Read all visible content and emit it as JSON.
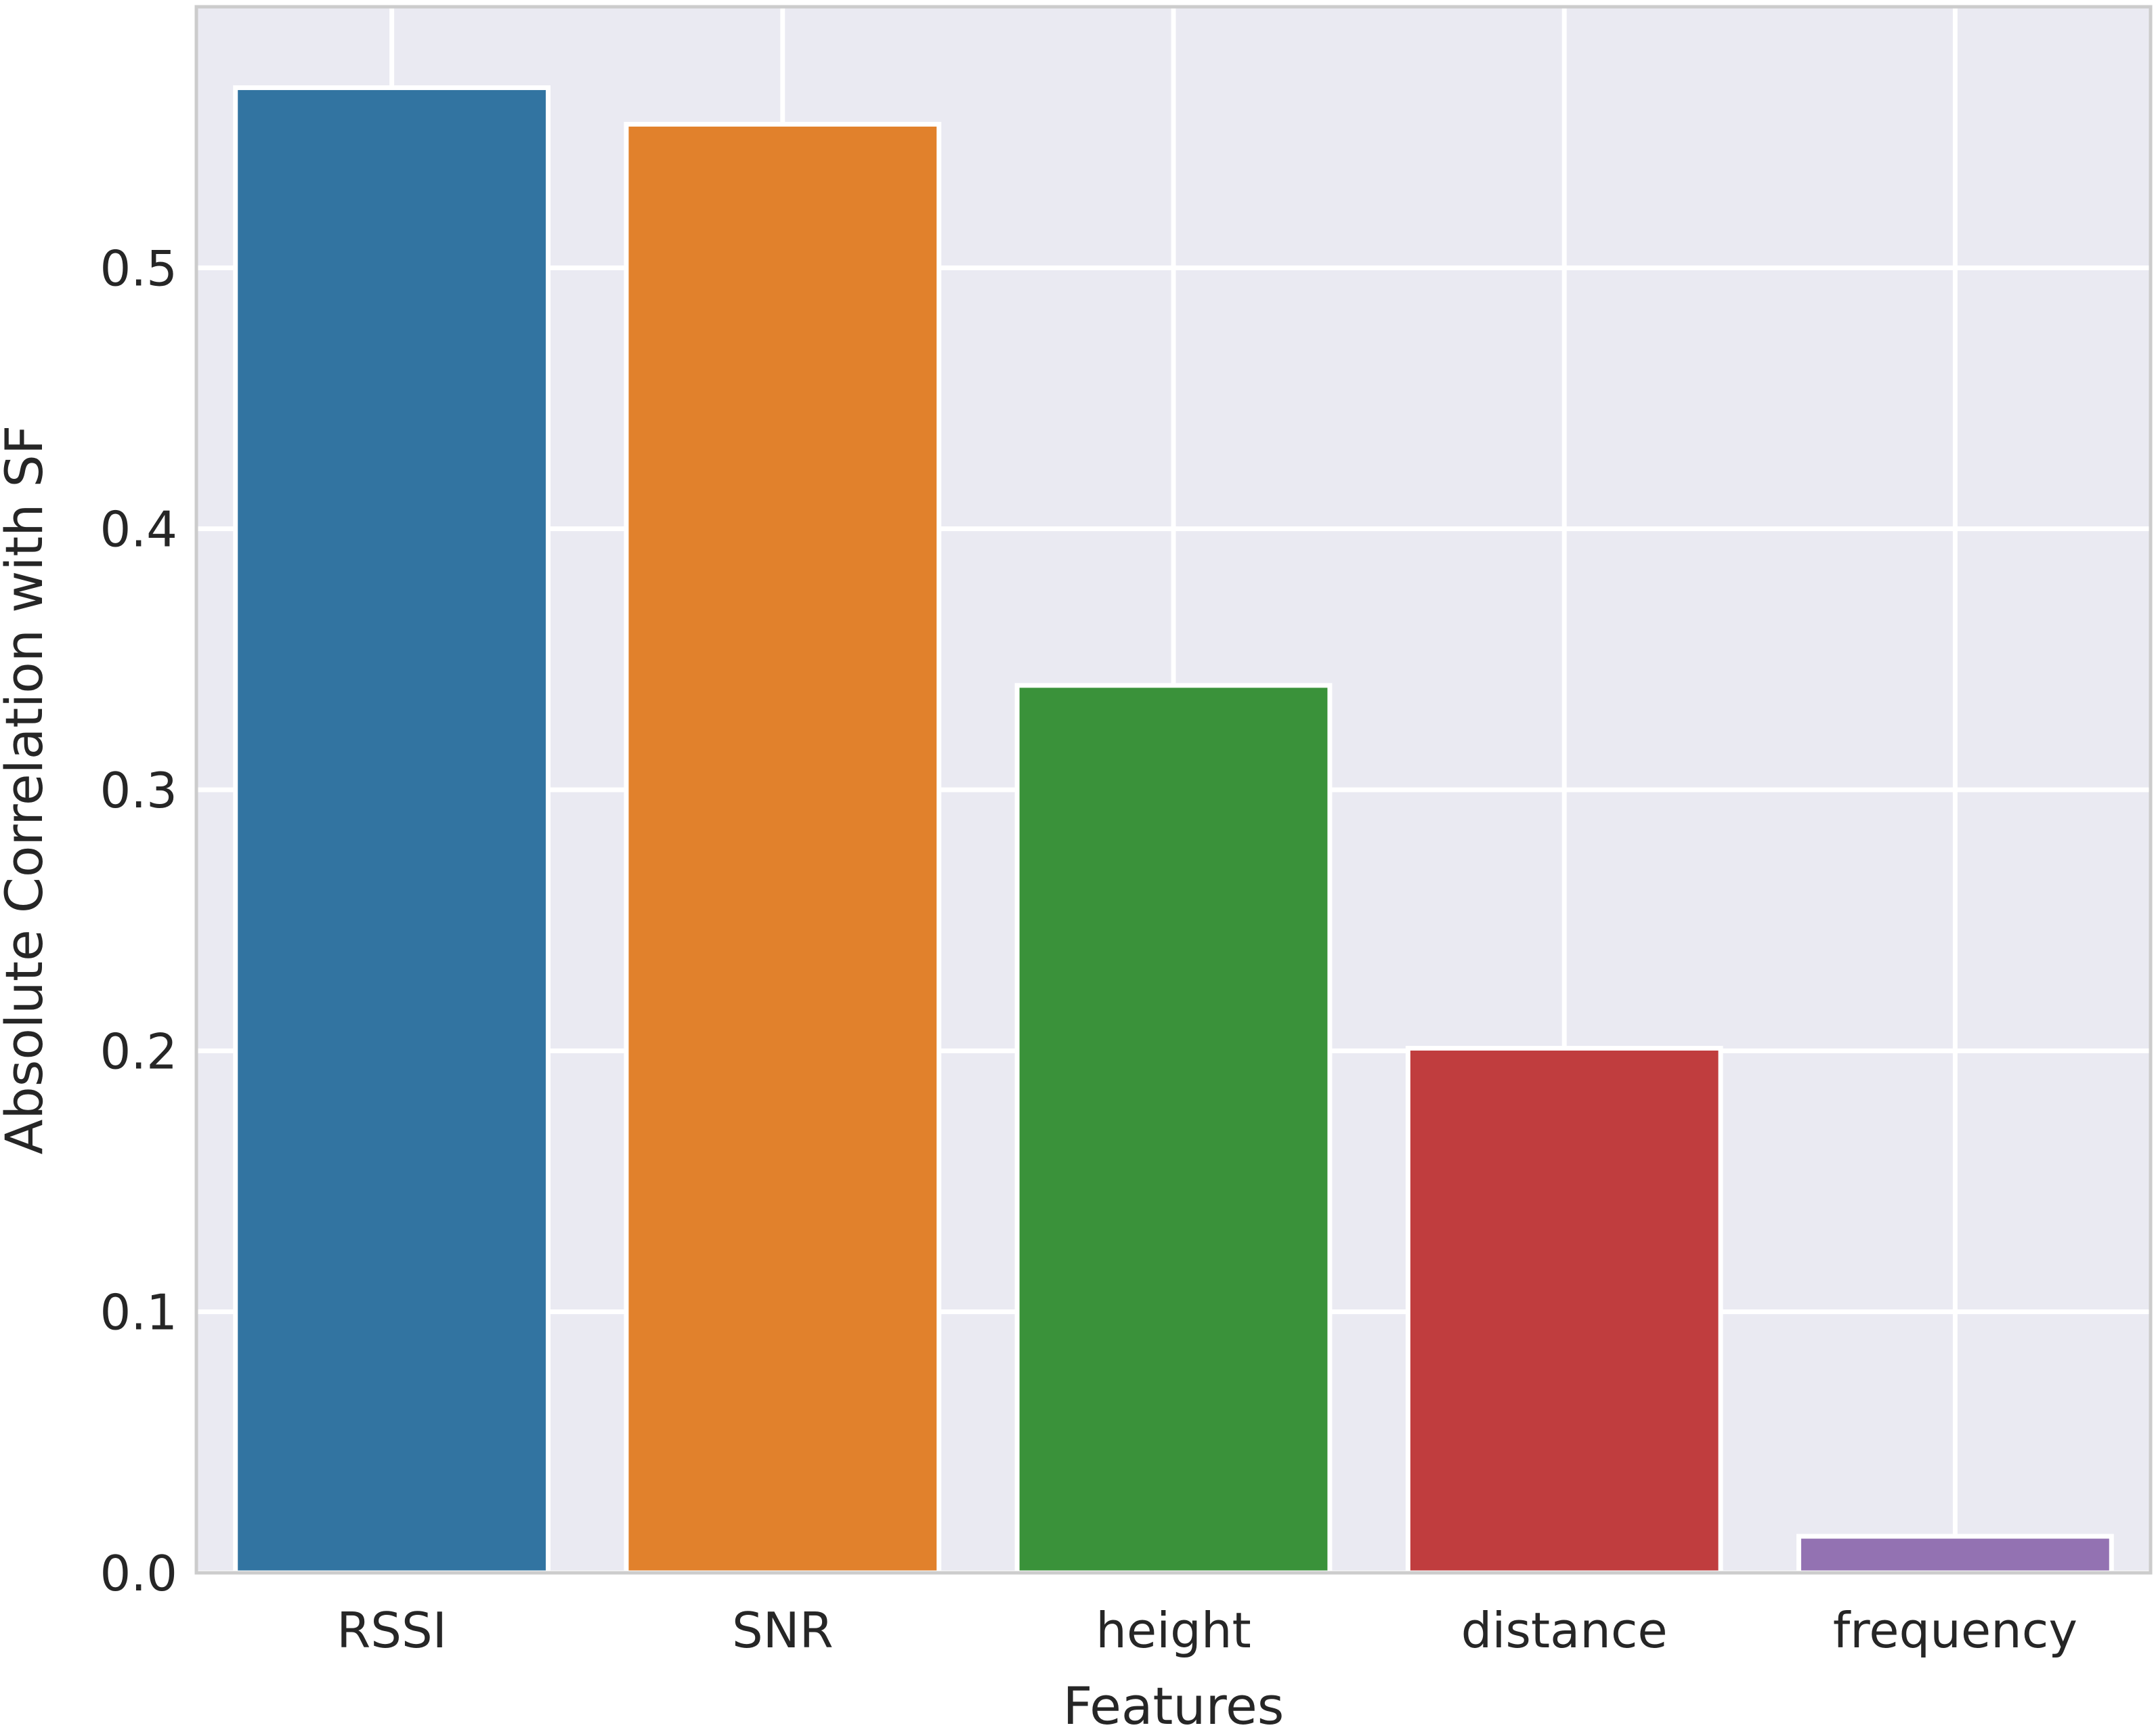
{
  "chart_data": {
    "type": "bar",
    "title": "",
    "xlabel": "Features",
    "ylabel": "Absolute Correlation with SF",
    "categories": [
      "RSSI",
      "SNR",
      "height",
      "distance",
      "frequency"
    ],
    "values": [
      0.569,
      0.555,
      0.34,
      0.201,
      0.014
    ],
    "colors": [
      "#3274a1",
      "#e1812c",
      "#3a923a",
      "#c03d3e",
      "#9372b2"
    ],
    "ylim": [
      0,
      0.6
    ],
    "yticks": [
      0.0,
      0.1,
      0.2,
      0.3,
      0.4,
      0.5
    ],
    "ytick_labels": [
      "0.0",
      "0.1",
      "0.2",
      "0.3",
      "0.4",
      "0.5"
    ],
    "grid": true,
    "background_color": "#eaeaf2",
    "grid_color": "#ffffff"
  }
}
